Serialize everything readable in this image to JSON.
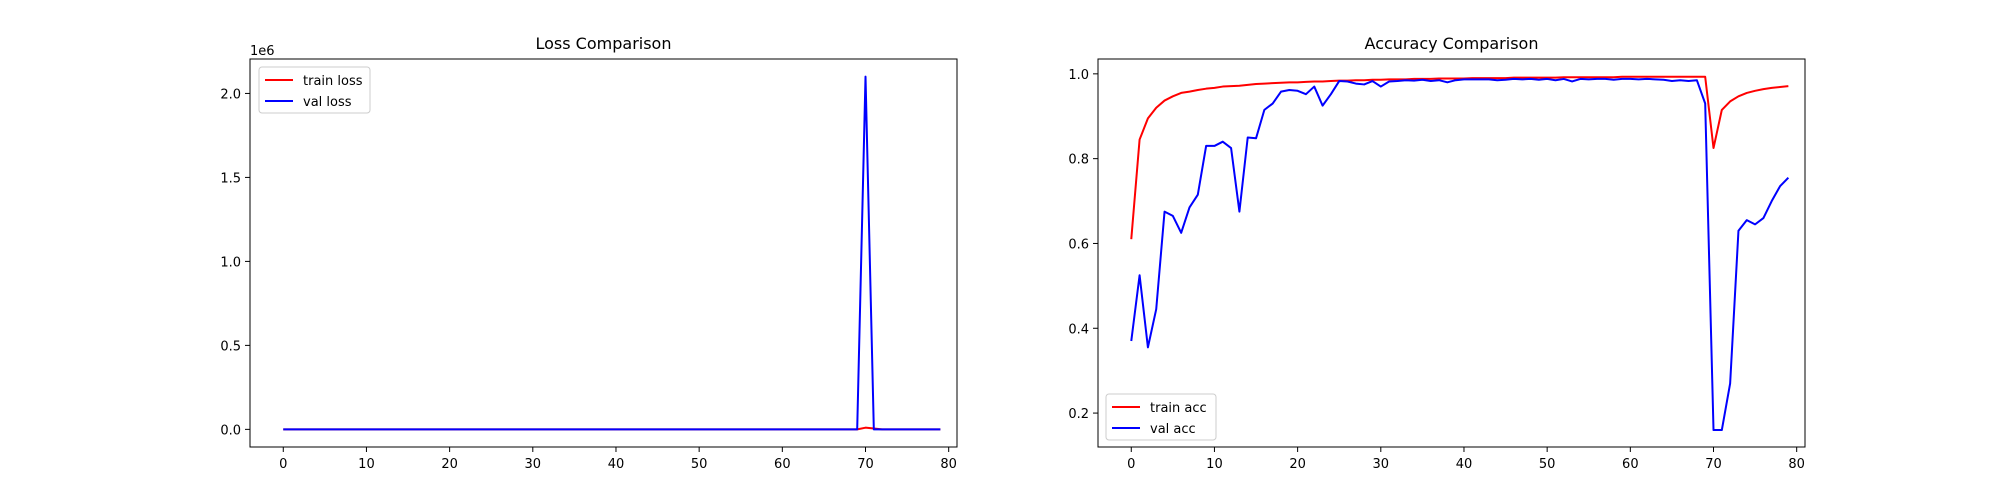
{
  "chart_data": [
    {
      "type": "line",
      "title": "Loss Comparison",
      "xlabel": "",
      "ylabel": "",
      "y_offset_label": "1e6",
      "xlim": [
        -4,
        81
      ],
      "ylim": [
        -0.105,
        2.205
      ],
      "xticks": [
        0,
        10,
        20,
        30,
        40,
        50,
        60,
        70,
        80
      ],
      "yticks": [
        0.0,
        0.5,
        1.0,
        1.5,
        2.0
      ],
      "ytick_labels": [
        "0.0",
        "0.5",
        "1.0",
        "1.5",
        "2.0"
      ],
      "grid": false,
      "legend_position": "upper-left",
      "x": [
        0,
        1,
        2,
        3,
        4,
        5,
        6,
        7,
        8,
        9,
        10,
        11,
        12,
        13,
        14,
        15,
        16,
        17,
        18,
        19,
        20,
        21,
        22,
        23,
        24,
        25,
        26,
        27,
        28,
        29,
        30,
        31,
        32,
        33,
        34,
        35,
        36,
        37,
        38,
        39,
        40,
        41,
        42,
        43,
        44,
        45,
        46,
        47,
        48,
        49,
        50,
        51,
        52,
        53,
        54,
        55,
        56,
        57,
        58,
        59,
        60,
        61,
        62,
        63,
        64,
        65,
        66,
        67,
        68,
        69,
        70,
        71,
        72,
        73,
        74,
        75,
        76,
        77,
        78,
        79
      ],
      "series": [
        {
          "name": "train loss",
          "color": "#ff0000",
          "values": [
            0,
            0,
            0,
            0,
            0,
            0,
            0,
            0,
            0,
            0,
            0,
            0,
            0,
            0,
            0,
            0,
            0,
            0,
            0,
            0,
            0,
            0,
            0,
            0,
            0,
            0,
            0,
            0,
            0,
            0,
            0,
            0,
            0,
            0,
            0,
            0,
            0,
            0,
            0,
            0,
            0,
            0,
            0,
            0,
            0,
            0,
            0,
            0,
            0,
            0,
            0,
            0,
            0,
            0,
            0,
            0,
            0,
            0,
            0,
            0,
            0,
            0,
            0,
            0,
            0,
            0,
            0,
            0,
            0,
            0,
            0.01,
            0.005,
            0,
            0,
            0,
            0,
            0,
            0,
            0,
            0
          ]
        },
        {
          "name": "val loss",
          "color": "#0000ff",
          "values": [
            0,
            0,
            0,
            0,
            0,
            0,
            0,
            0,
            0,
            0,
            0,
            0,
            0,
            0,
            0,
            0,
            0,
            0,
            0,
            0,
            0,
            0,
            0,
            0,
            0,
            0,
            0,
            0,
            0,
            0,
            0,
            0,
            0,
            0,
            0,
            0,
            0,
            0,
            0,
            0,
            0,
            0,
            0,
            0,
            0,
            0,
            0,
            0,
            0,
            0,
            0,
            0,
            0,
            0,
            0,
            0,
            0,
            0,
            0,
            0,
            0,
            0,
            0,
            0,
            0,
            0,
            0,
            0,
            0,
            0,
            2.1,
            0,
            0,
            0,
            0,
            0,
            0,
            0,
            0,
            0
          ]
        }
      ]
    },
    {
      "type": "line",
      "title": "Accuracy Comparison",
      "xlabel": "",
      "ylabel": "",
      "xlim": [
        -4,
        81
      ],
      "ylim": [
        0.12,
        1.035
      ],
      "xticks": [
        0,
        10,
        20,
        30,
        40,
        50,
        60,
        70,
        80
      ],
      "yticks": [
        0.2,
        0.4,
        0.6,
        0.8,
        1.0
      ],
      "ytick_labels": [
        "0.2",
        "0.4",
        "0.6",
        "0.8",
        "1.0"
      ],
      "grid": false,
      "legend_position": "lower-left",
      "x": [
        0,
        1,
        2,
        3,
        4,
        5,
        6,
        7,
        8,
        9,
        10,
        11,
        12,
        13,
        14,
        15,
        16,
        17,
        18,
        19,
        20,
        21,
        22,
        23,
        24,
        25,
        26,
        27,
        28,
        29,
        30,
        31,
        32,
        33,
        34,
        35,
        36,
        37,
        38,
        39,
        40,
        41,
        42,
        43,
        44,
        45,
        46,
        47,
        48,
        49,
        50,
        51,
        52,
        53,
        54,
        55,
        56,
        57,
        58,
        59,
        60,
        61,
        62,
        63,
        64,
        65,
        66,
        67,
        68,
        69,
        70,
        71,
        72,
        73,
        74,
        75,
        76,
        77,
        78,
        79
      ],
      "series": [
        {
          "name": "train acc",
          "color": "#ff0000",
          "values": [
            0.61,
            0.845,
            0.895,
            0.92,
            0.937,
            0.947,
            0.955,
            0.958,
            0.962,
            0.965,
            0.967,
            0.97,
            0.971,
            0.972,
            0.974,
            0.976,
            0.977,
            0.978,
            0.979,
            0.98,
            0.98,
            0.981,
            0.982,
            0.982,
            0.983,
            0.984,
            0.984,
            0.985,
            0.985,
            0.986,
            0.986,
            0.987,
            0.987,
            0.987,
            0.988,
            0.988,
            0.988,
            0.989,
            0.989,
            0.989,
            0.989,
            0.99,
            0.99,
            0.99,
            0.99,
            0.99,
            0.991,
            0.991,
            0.991,
            0.991,
            0.991,
            0.991,
            0.992,
            0.992,
            0.992,
            0.992,
            0.992,
            0.992,
            0.992,
            0.993,
            0.993,
            0.993,
            0.993,
            0.993,
            0.993,
            0.993,
            0.993,
            0.993,
            0.993,
            0.993,
            0.825,
            0.915,
            0.935,
            0.947,
            0.955,
            0.96,
            0.964,
            0.967,
            0.969,
            0.971
          ]
        },
        {
          "name": "val acc",
          "color": "#0000ff",
          "values": [
            0.37,
            0.525,
            0.355,
            0.445,
            0.675,
            0.665,
            0.625,
            0.685,
            0.715,
            0.83,
            0.83,
            0.84,
            0.825,
            0.675,
            0.85,
            0.848,
            0.915,
            0.93,
            0.958,
            0.962,
            0.96,
            0.952,
            0.97,
            0.925,
            0.952,
            0.983,
            0.982,
            0.977,
            0.975,
            0.983,
            0.97,
            0.982,
            0.983,
            0.985,
            0.984,
            0.986,
            0.983,
            0.985,
            0.98,
            0.985,
            0.987,
            0.987,
            0.987,
            0.987,
            0.985,
            0.986,
            0.988,
            0.987,
            0.988,
            0.986,
            0.988,
            0.985,
            0.988,
            0.982,
            0.988,
            0.987,
            0.988,
            0.988,
            0.986,
            0.988,
            0.988,
            0.987,
            0.988,
            0.987,
            0.986,
            0.983,
            0.985,
            0.983,
            0.985,
            0.93,
            0.16,
            0.16,
            0.27,
            0.63,
            0.655,
            0.645,
            0.66,
            0.7,
            0.735,
            0.755
          ]
        }
      ]
    }
  ]
}
